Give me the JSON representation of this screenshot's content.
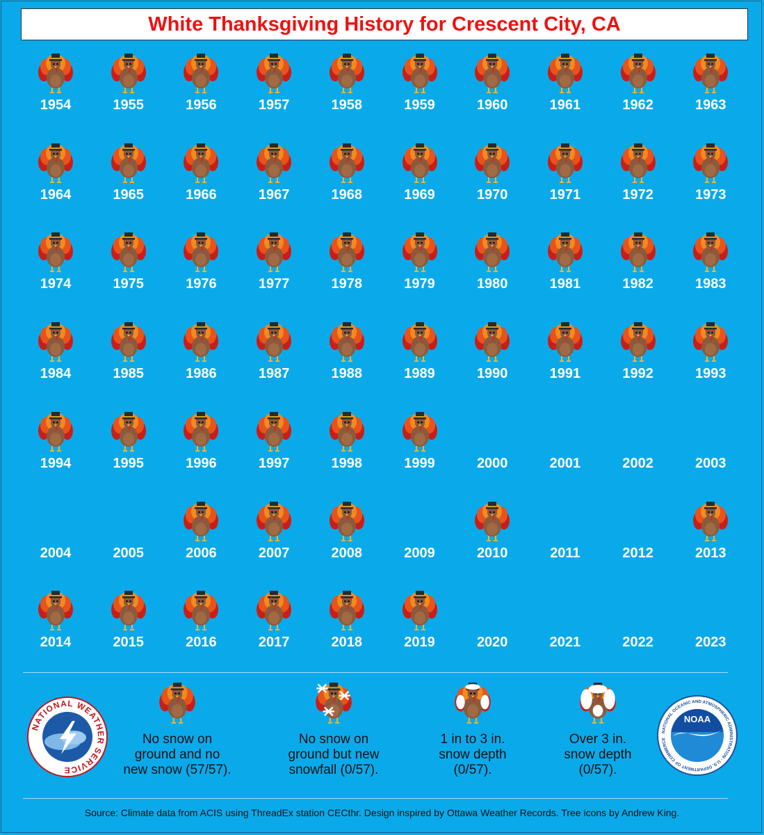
{
  "title": "White Thanksgiving History for Crescent City, CA",
  "chart_data": {
    "type": "table",
    "title": "White Thanksgiving History for Crescent City, CA",
    "categories": {
      "no_snow": "No snow on ground and no new snow (57/57).",
      "new_snowfall": "No snow on ground but new snowfall (0/57).",
      "depth_1_3": "1 in to 3 in. snow depth (0/57).",
      "depth_over_3": "Over 3 in. snow depth (0/57)."
    },
    "years": [
      {
        "year": "1954",
        "category": "no_snow"
      },
      {
        "year": "1955",
        "category": "no_snow"
      },
      {
        "year": "1956",
        "category": "no_snow"
      },
      {
        "year": "1957",
        "category": "no_snow"
      },
      {
        "year": "1958",
        "category": "no_snow"
      },
      {
        "year": "1959",
        "category": "no_snow"
      },
      {
        "year": "1960",
        "category": "no_snow"
      },
      {
        "year": "1961",
        "category": "no_snow"
      },
      {
        "year": "1962",
        "category": "no_snow"
      },
      {
        "year": "1963",
        "category": "no_snow"
      },
      {
        "year": "1964",
        "category": "no_snow"
      },
      {
        "year": "1965",
        "category": "no_snow"
      },
      {
        "year": "1966",
        "category": "no_snow"
      },
      {
        "year": "1967",
        "category": "no_snow"
      },
      {
        "year": "1968",
        "category": "no_snow"
      },
      {
        "year": "1969",
        "category": "no_snow"
      },
      {
        "year": "1970",
        "category": "no_snow"
      },
      {
        "year": "1971",
        "category": "no_snow"
      },
      {
        "year": "1972",
        "category": "no_snow"
      },
      {
        "year": "1973",
        "category": "no_snow"
      },
      {
        "year": "1974",
        "category": "no_snow"
      },
      {
        "year": "1975",
        "category": "no_snow"
      },
      {
        "year": "1976",
        "category": "no_snow"
      },
      {
        "year": "1977",
        "category": "no_snow"
      },
      {
        "year": "1978",
        "category": "no_snow"
      },
      {
        "year": "1979",
        "category": "no_snow"
      },
      {
        "year": "1980",
        "category": "no_snow"
      },
      {
        "year": "1981",
        "category": "no_snow"
      },
      {
        "year": "1982",
        "category": "no_snow"
      },
      {
        "year": "1983",
        "category": "no_snow"
      },
      {
        "year": "1984",
        "category": "no_snow"
      },
      {
        "year": "1985",
        "category": "no_snow"
      },
      {
        "year": "1986",
        "category": "no_snow"
      },
      {
        "year": "1987",
        "category": "no_snow"
      },
      {
        "year": "1988",
        "category": "no_snow"
      },
      {
        "year": "1989",
        "category": "no_snow"
      },
      {
        "year": "1990",
        "category": "no_snow"
      },
      {
        "year": "1991",
        "category": "no_snow"
      },
      {
        "year": "1992",
        "category": "no_snow"
      },
      {
        "year": "1993",
        "category": "no_snow"
      },
      {
        "year": "1994",
        "category": "no_snow"
      },
      {
        "year": "1995",
        "category": "no_snow"
      },
      {
        "year": "1996",
        "category": "no_snow"
      },
      {
        "year": "1997",
        "category": "no_snow"
      },
      {
        "year": "1998",
        "category": "no_snow"
      },
      {
        "year": "1999",
        "category": "no_snow"
      },
      {
        "year": "2000",
        "category": "missing"
      },
      {
        "year": "2001",
        "category": "missing"
      },
      {
        "year": "2002",
        "category": "missing"
      },
      {
        "year": "2003",
        "category": "missing"
      },
      {
        "year": "2004",
        "category": "missing"
      },
      {
        "year": "2005",
        "category": "missing"
      },
      {
        "year": "2006",
        "category": "no_snow"
      },
      {
        "year": "2007",
        "category": "no_snow"
      },
      {
        "year": "2008",
        "category": "no_snow"
      },
      {
        "year": "2009",
        "category": "missing"
      },
      {
        "year": "2010",
        "category": "no_snow"
      },
      {
        "year": "2011",
        "category": "missing"
      },
      {
        "year": "2012",
        "category": "missing"
      },
      {
        "year": "2013",
        "category": "no_snow"
      },
      {
        "year": "2014",
        "category": "no_snow"
      },
      {
        "year": "2015",
        "category": "no_snow"
      },
      {
        "year": "2016",
        "category": "no_snow"
      },
      {
        "year": "2017",
        "category": "no_snow"
      },
      {
        "year": "2018",
        "category": "no_snow"
      },
      {
        "year": "2019",
        "category": "no_snow"
      },
      {
        "year": "2020",
        "category": "missing"
      },
      {
        "year": "2021",
        "category": "missing"
      },
      {
        "year": "2022",
        "category": "missing"
      },
      {
        "year": "2023",
        "category": "missing"
      }
    ]
  },
  "legend": {
    "no_snow": {
      "line1": "No snow on",
      "line2": "ground and no",
      "line3": "new snow (57/57).",
      "icon": "turkey-icon"
    },
    "new_snowfall": {
      "line1": "No snow on",
      "line2": "ground but new",
      "line3": "snowfall (0/57).",
      "icon": "turkey-snowflakes-icon"
    },
    "depth_1_3": {
      "line1": "1 in to 3 in.",
      "line2": "snow depth",
      "line3": "(0/57).",
      "icon": "turkey-light-snow-icon"
    },
    "depth_over_3": {
      "line1": "Over 3 in.",
      "line2": "snow depth",
      "line3": "(0/57).",
      "icon": "turkey-heavy-snow-icon"
    }
  },
  "logos": {
    "nws": {
      "text": "NATIONAL WEATHER SERVICE",
      "icon": "nws-logo-icon"
    },
    "noaa": {
      "text": "NOAA",
      "ring_text": "NATIONAL OCEANIC AND ATMOSPHERIC ADMINISTRATION · U.S. DEPARTMENT OF COMMERCE",
      "icon": "noaa-logo-icon"
    }
  },
  "source": "Source: Climate data from ACIS using ThreadEx station CECthr. Design inspired by Ottawa Weather Records. Tree icons by Andrew King.",
  "colors": {
    "background": "#0aaaea",
    "title": "#ee1111",
    "year_label": "#ffffff",
    "turkey_body": "#8b5a3c",
    "feather_red": "#d7261e",
    "feather_orange": "#f07a1a",
    "hat": "#2a2a2a"
  }
}
